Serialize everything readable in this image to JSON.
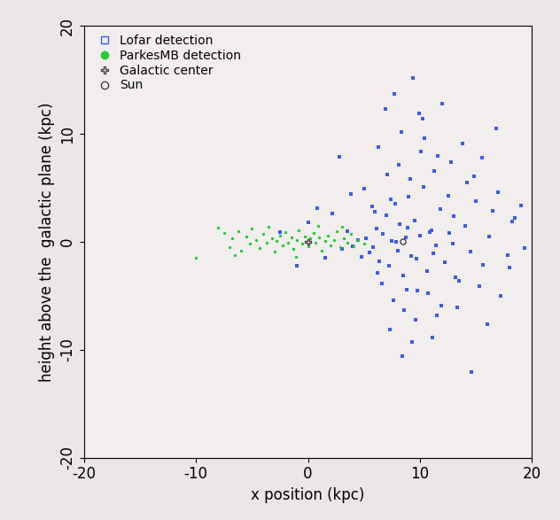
{
  "chart_data": {
    "type": "scatter",
    "x_label": "x position (kpc)",
    "y_label": "height above the  galactic plane (kpc)",
    "xlim": [
      -20,
      20
    ],
    "ylim": [
      -20,
      20
    ],
    "xticks": [
      -20,
      -10,
      0,
      10,
      20
    ],
    "yticks": [
      -20,
      -10,
      0,
      10,
      20
    ],
    "legend": "upper left",
    "grid": false,
    "series": [
      {
        "name": "Lofar detection",
        "color": "#3b5ce6",
        "marker": "square",
        "x": [
          5.2,
          5.8,
          6.1,
          6.4,
          6.7,
          7.0,
          7.2,
          7.5,
          7.8,
          8.0,
          8.2,
          8.5,
          8.7,
          9.0,
          9.2,
          9.5,
          9.8,
          10.0,
          10.3,
          10.6,
          11.0,
          11.4,
          11.8,
          12.2,
          12.6,
          13.0,
          13.5,
          14.0,
          14.5,
          15.0,
          15.6,
          16.2,
          17.0,
          17.8,
          18.5,
          19.3,
          5.5,
          6.0,
          6.6,
          7.1,
          7.6,
          8.1,
          8.6,
          9.1,
          9.6,
          10.1,
          10.7,
          11.3,
          11.9,
          12.5,
          13.2,
          14.2,
          15.3,
          16.5,
          18.0,
          5.0,
          6.3,
          7.3,
          8.3,
          9.3,
          10.4,
          11.5,
          12.8,
          14.8,
          17.2,
          4.5,
          4.0,
          3.5,
          3.0,
          2.2,
          1.5,
          0.8,
          0.0,
          -1.0,
          -2.5,
          6.9,
          7.7,
          8.4,
          9.4,
          10.2,
          11.1,
          12.0,
          13.8,
          16.0,
          19.0,
          6.2,
          7.4,
          8.8,
          9.9,
          11.6,
          13.3,
          15.5,
          18.2,
          5.7,
          12.9,
          7.9,
          9.7,
          10.9,
          8.9,
          11.2,
          4.8,
          3.8,
          14.6,
          16.8,
          2.8
        ],
        "y": [
          0.3,
          -0.5,
          1.2,
          -1.8,
          0.7,
          2.5,
          -2.2,
          0.1,
          3.5,
          -0.8,
          1.6,
          -3.1,
          0.4,
          4.2,
          -1.3,
          2.0,
          -4.5,
          0.6,
          5.1,
          -2.7,
          1.1,
          -0.3,
          3.0,
          -1.9,
          0.8,
          2.4,
          -3.6,
          1.5,
          -0.9,
          3.8,
          -2.1,
          0.5,
          4.6,
          -1.2,
          2.2,
          -0.6,
          -1.0,
          2.8,
          -3.9,
          6.2,
          -5.4,
          7.1,
          -6.3,
          5.8,
          -7.2,
          8.4,
          -4.8,
          6.6,
          -5.9,
          4.3,
          -3.3,
          5.5,
          -4.1,
          2.9,
          -2.4,
          4.9,
          8.8,
          -8.1,
          10.2,
          -9.3,
          9.6,
          -6.8,
          7.4,
          6.1,
          -5.0,
          0.2,
          -0.4,
          1.0,
          -0.7,
          2.6,
          -1.5,
          3.1,
          1.8,
          -2.2,
          0.9,
          12.3,
          13.7,
          -10.6,
          15.2,
          11.4,
          -8.9,
          12.8,
          9.1,
          -7.6,
          3.4,
          -2.9,
          3.9,
          -4.4,
          11.9,
          8.0,
          -6.1,
          7.8,
          1.9,
          3.3,
          -0.2,
          0.0,
          -1.6,
          0.9,
          1.3,
          -1.1,
          -1.4,
          4.4,
          -12.1,
          10.5,
          7.9
        ]
      },
      {
        "name": "ParkesMB detection",
        "color": "#22cc33",
        "marker": "circle",
        "x": [
          -10,
          -8,
          -7.5,
          -7,
          -6.8,
          -6.2,
          -6,
          -5.5,
          -5.2,
          -5,
          -4.6,
          -4.3,
          -4,
          -3.7,
          -3.5,
          -3.2,
          -3,
          -2.8,
          -2.5,
          -2.3,
          -2,
          -1.8,
          -1.5,
          -1.3,
          -1,
          -0.8,
          -0.5,
          -0.3,
          0,
          0.2,
          0.5,
          0.7,
          1,
          1.2,
          1.5,
          1.8,
          2,
          2.3,
          2.6,
          2.9,
          3.2,
          3.5,
          3.8,
          4.1,
          4.5,
          5,
          -6.5,
          -1.1,
          0.9,
          3
        ],
        "y": [
          -1.5,
          1.3,
          0.8,
          -0.5,
          0.3,
          1.0,
          -0.8,
          0.5,
          -0.2,
          1.2,
          0.2,
          -0.6,
          0.7,
          -0.1,
          1.4,
          0.3,
          -0.9,
          0.1,
          0.6,
          -0.3,
          0.9,
          -0.1,
          0.4,
          -0.7,
          0.2,
          1.1,
          -0.2,
          0.5,
          -0.4,
          0.3,
          0.8,
          -0.1,
          0.4,
          -0.8,
          0.1,
          0.6,
          -0.3,
          0.2,
          1.0,
          -0.5,
          0.3,
          -0.1,
          0.7,
          -0.4,
          0.2,
          -0.2,
          -1.2,
          -1.4,
          1.5,
          1.4
        ]
      },
      {
        "name": "Galactic center",
        "color": "#444444",
        "marker": "plus",
        "x": [
          0
        ],
        "y": [
          0
        ]
      },
      {
        "name": "Sun",
        "color": "#444444",
        "marker": "ring",
        "x": [
          8.5
        ],
        "y": [
          0
        ]
      }
    ]
  }
}
